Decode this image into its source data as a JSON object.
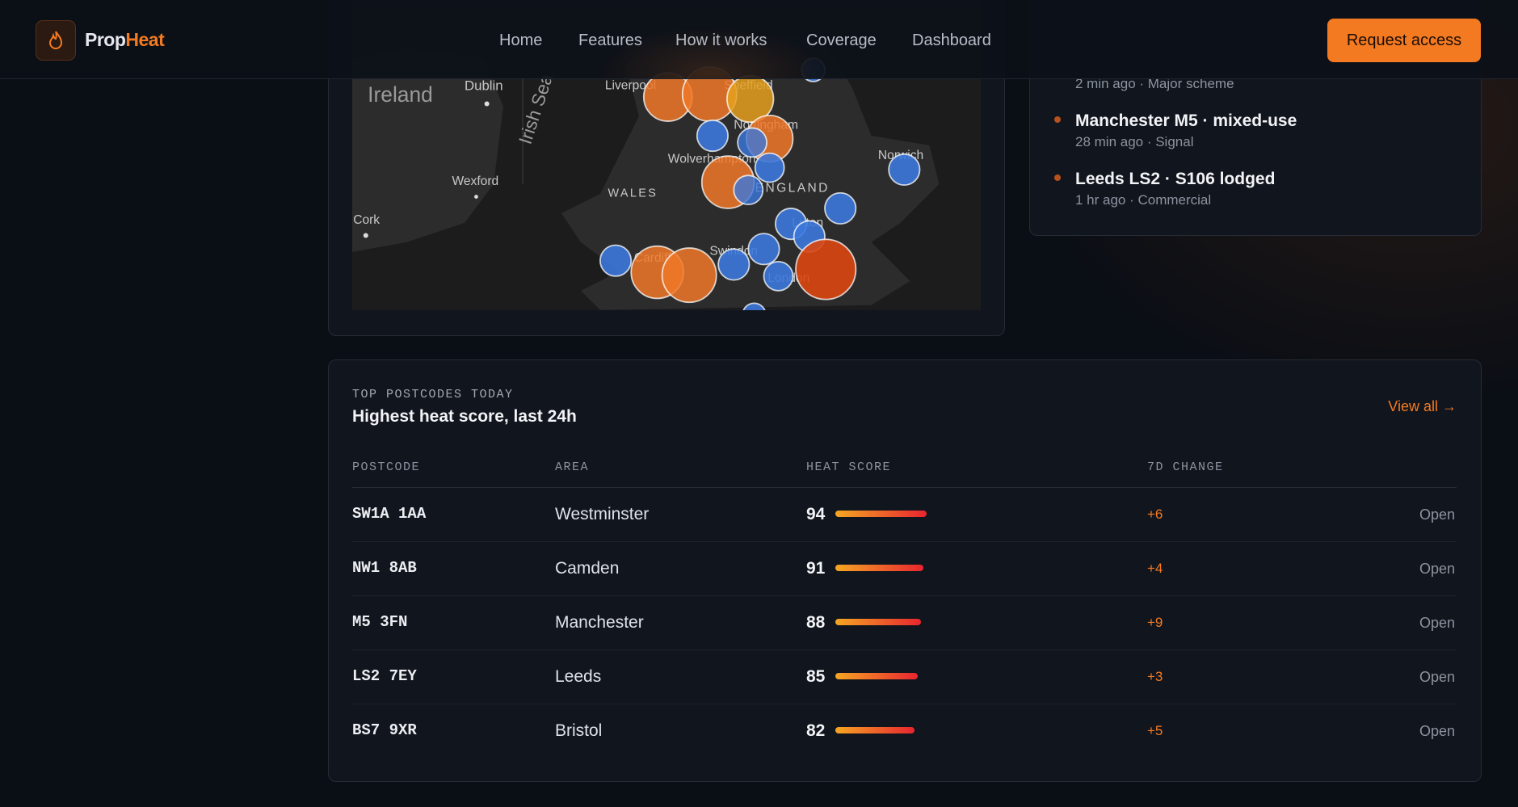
{
  "header": {
    "brand_prefix": "Prop",
    "brand_suffix": "Heat",
    "nav": [
      "Home",
      "Features",
      "How it works",
      "Coverage",
      "Dashboard"
    ],
    "cta": "Request access"
  },
  "map": {
    "labels": [
      "Ireland",
      "Dublin",
      "Irish Sea",
      "Liverpool",
      "Sheffield",
      "Nottingham",
      "Wolverhampton",
      "Wexford",
      "WALES",
      "ENGLAND",
      "Norwich",
      "Cork",
      "Luton",
      "Swindon",
      "Cardiff",
      "London"
    ]
  },
  "feed": {
    "items": [
      {
        "meta": "2 min ago · Major scheme"
      },
      {
        "title": "Manchester M5 · mixed-use",
        "meta": "28 min ago · Signal"
      },
      {
        "title": "Leeds LS2 · S106 lodged",
        "meta": "1 hr ago · Commercial"
      }
    ]
  },
  "table": {
    "eyebrow": "TOP POSTCODES TODAY",
    "title": "Highest heat score, last 24h",
    "view_all": "View all →",
    "columns": [
      "POSTCODE",
      "AREA",
      "HEAT SCORE",
      "7D CHANGE"
    ],
    "rows": [
      {
        "postcode": "SW1A 1AA",
        "area": "Westminster",
        "score": 94,
        "change": "+6",
        "action": "Open"
      },
      {
        "postcode": "NW1 8AB",
        "area": "Camden",
        "score": 91,
        "change": "+4",
        "action": "Open"
      },
      {
        "postcode": "M5 3FN",
        "area": "Manchester",
        "score": 88,
        "change": "+9",
        "action": "Open"
      },
      {
        "postcode": "LS2 7EY",
        "area": "Leeds",
        "score": 85,
        "change": "+3",
        "action": "Open"
      },
      {
        "postcode": "BS7 9XR",
        "area": "Bristol",
        "score": 82,
        "change": "+5",
        "action": "Open"
      }
    ]
  }
}
